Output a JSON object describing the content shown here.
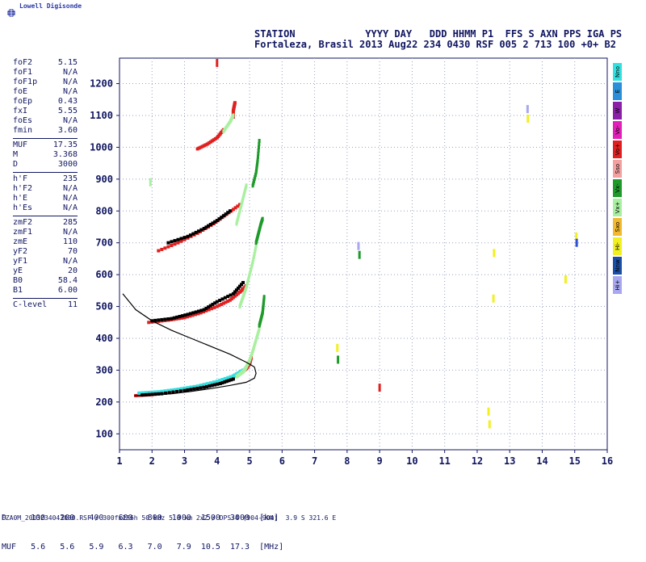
{
  "brand": {
    "name": "Lowell Digisonde"
  },
  "header": {
    "line1": "STATION            YYYY DAY   DDD HHMM P1  FFS S AXN PPS IGA PS",
    "line2": "Fortaleza, Brasil 2013 Aug22 234 0430 RSF 005 2 713 100 +0+ B2"
  },
  "params": [
    {
      "group": [
        {
          "label": "foF2",
          "value": "5.15"
        },
        {
          "label": "foF1",
          "value": "N/A"
        },
        {
          "label": "foF1p",
          "value": "N/A"
        },
        {
          "label": "foE",
          "value": "N/A"
        },
        {
          "label": "foEp",
          "value": "0.43"
        },
        {
          "label": "fxI",
          "value": "5.55"
        },
        {
          "label": "foEs",
          "value": "N/A"
        },
        {
          "label": "fmin",
          "value": "3.60"
        }
      ]
    },
    {
      "group": [
        {
          "label": "MUF",
          "value": "17.35"
        },
        {
          "label": "M",
          "value": "3.368"
        },
        {
          "label": "D",
          "value": "3000"
        }
      ]
    },
    {
      "group": [
        {
          "label": "h'F",
          "value": "235"
        },
        {
          "label": "h'F2",
          "value": "N/A"
        },
        {
          "label": "h'E",
          "value": "N/A"
        },
        {
          "label": "h'Es",
          "value": "N/A"
        }
      ]
    },
    {
      "group": [
        {
          "label": "zmF2",
          "value": "285"
        },
        {
          "label": "zmF1",
          "value": "N/A"
        },
        {
          "label": "zmE",
          "value": "110"
        },
        {
          "label": "yF2",
          "value": "70"
        },
        {
          "label": "yF1",
          "value": "N/A"
        },
        {
          "label": "yE",
          "value": "20"
        },
        {
          "label": "B0",
          "value": "58.4"
        },
        {
          "label": "B1",
          "value": "6.00"
        }
      ]
    },
    {
      "group": [
        {
          "label": "C-level",
          "value": "11"
        }
      ]
    }
  ],
  "legend": [
    {
      "label": "Nno",
      "color": "#33e0e0"
    },
    {
      "label": "E",
      "color": "#2a8fd8"
    },
    {
      "label": "W",
      "color": "#8a1fa8"
    },
    {
      "label": "Vo-",
      "color": "#e21fb8"
    },
    {
      "label": "Vo+",
      "color": "#e02020"
    },
    {
      "label": "Sso",
      "color": "#f2a0a0"
    },
    {
      "label": "Vx-",
      "color": "#1e9a2a"
    },
    {
      "label": "Vx+",
      "color": "#a8f0a0"
    },
    {
      "label": "Sxo",
      "color": "#f2b830"
    },
    {
      "label": "Hi-",
      "color": "#f2f020"
    },
    {
      "label": "Nnw",
      "color": "#1a4fa8"
    },
    {
      "label": "Hi+",
      "color": "#a8a8f0"
    }
  ],
  "footer": {
    "line1": "D     100   200   400   600   800  1000  1500  3000  [km]",
    "line2": "MUF   5.6   5.6   5.9   6.3   7.0   7.9  10.5  17.3  [MHz]",
    "line3": "FZA0M_2013234043000.RSF / 300fx256h 50 kHz 5.0 km 2x2 / DPS-4 (904-904)  3.9 S 321.6 E"
  },
  "chart_data": {
    "type": "scatter",
    "x_ticks": [
      "1",
      "2",
      "3",
      "4",
      "5",
      "6",
      "7",
      "8",
      "9",
      "10",
      "11",
      "12",
      "13",
      "14",
      "15",
      "16"
    ],
    "y_ticks": [
      "100",
      "200",
      "300",
      "400",
      "500",
      "600",
      "700",
      "800",
      "900",
      "1000",
      "1100",
      "1200"
    ],
    "xlim": [
      1,
      16
    ],
    "ylim": [
      50,
      1280
    ],
    "grid": true,
    "colors": {
      "o": "#e02020",
      "o2": "#8a1f3a",
      "x": "#1e9a2a",
      "xl": "#a8f0a0",
      "c": "#33e0e0",
      "b": "#2a4fd8",
      "k": "#000000",
      "y": "#f2f020",
      "p": "#a8a8f0"
    },
    "traces": [
      {
        "x": [
          1.5,
          2.0,
          2.5,
          3.0,
          3.5,
          4.0,
          4.4,
          4.7,
          4.9,
          5.0,
          5.05
        ],
        "y": [
          220,
          223,
          232,
          240,
          250,
          262,
          275,
          290,
          305,
          320,
          340
        ],
        "color": "o"
      },
      {
        "x": [
          1.6,
          2.2,
          2.8,
          3.4,
          4.0,
          4.5,
          4.8
        ],
        "y": [
          228,
          232,
          240,
          250,
          265,
          282,
          300
        ],
        "color": "c"
      },
      {
        "x": [
          1.7,
          2.3,
          3.0,
          3.6,
          4.1,
          4.5
        ],
        "y": [
          222,
          226,
          236,
          246,
          258,
          272
        ],
        "color": "k"
      },
      {
        "x": [
          1.9,
          2.5,
          3.0,
          3.5,
          4.0,
          4.4,
          4.7,
          4.9
        ],
        "y": [
          450,
          457,
          465,
          480,
          500,
          520,
          545,
          565
        ],
        "color": "o"
      },
      {
        "x": [
          2.0,
          2.6,
          3.1,
          3.6,
          4.0,
          4.5,
          4.8
        ],
        "y": [
          455,
          462,
          475,
          490,
          515,
          540,
          575
        ],
        "color": "k"
      },
      {
        "x": [
          2.2,
          2.8,
          3.4,
          3.9,
          4.3,
          4.7
        ],
        "y": [
          675,
          700,
          730,
          760,
          790,
          820
        ],
        "color": "o"
      },
      {
        "x": [
          2.5,
          3.1,
          3.6,
          4.0,
          4.4
        ],
        "y": [
          700,
          720,
          745,
          770,
          800
        ],
        "color": "k"
      },
      {
        "x": [
          3.4,
          3.7,
          4.0,
          4.2
        ],
        "y": [
          995,
          1010,
          1030,
          1055
        ],
        "color": "o"
      },
      {
        "x": [
          4.5,
          4.5,
          4.55
        ],
        "y": [
          1095,
          1115,
          1140
        ],
        "color": "o"
      }
    ],
    "x_traces": [
      {
        "x": [
          4.6,
          4.8,
          4.9,
          5.0,
          5.1,
          5.2,
          5.3
        ],
        "y": [
          280,
          295,
          310,
          330,
          360,
          395,
          430
        ],
        "color": "xl"
      },
      {
        "x": [
          5.3,
          5.35,
          5.4,
          5.42,
          5.45
        ],
        "y": [
          440,
          460,
          480,
          500,
          530
        ],
        "color": "x"
      },
      {
        "x": [
          4.7,
          4.8,
          4.9,
          5.0,
          5.1,
          5.2
        ],
        "y": [
          500,
          530,
          560,
          600,
          640,
          690
        ],
        "color": "xl"
      },
      {
        "x": [
          5.2,
          5.25,
          5.3,
          5.35,
          5.4
        ],
        "y": [
          700,
          720,
          740,
          760,
          775
        ],
        "color": "x"
      },
      {
        "x": [
          4.6,
          4.7,
          4.8,
          4.9
        ],
        "y": [
          760,
          800,
          840,
          880
        ],
        "color": "xl"
      },
      {
        "x": [
          5.1,
          5.2,
          5.25,
          5.3
        ],
        "y": [
          880,
          920,
          960,
          1020
        ],
        "color": "x"
      },
      {
        "x": [
          4.2,
          4.4,
          4.5
        ],
        "y": [
          1050,
          1080,
          1100
        ],
        "color": "xl"
      }
    ],
    "spots": [
      {
        "x": 7.7,
        "y": 370,
        "color": "y"
      },
      {
        "x": 7.72,
        "y": 333,
        "color": "x"
      },
      {
        "x": 9.0,
        "y": 245,
        "color": "o"
      },
      {
        "x": 8.35,
        "y": 690,
        "color": "p"
      },
      {
        "x": 8.38,
        "y": 662,
        "color": "x"
      },
      {
        "x": 12.35,
        "y": 170,
        "color": "y"
      },
      {
        "x": 12.38,
        "y": 130,
        "color": "y"
      },
      {
        "x": 12.5,
        "y": 525,
        "color": "y"
      },
      {
        "x": 12.52,
        "y": 668,
        "color": "y"
      },
      {
        "x": 13.55,
        "y": 1120,
        "color": "p"
      },
      {
        "x": 13.56,
        "y": 1090,
        "color": "y"
      },
      {
        "x": 14.72,
        "y": 585,
        "color": "y"
      },
      {
        "x": 15.05,
        "y": 720,
        "color": "y"
      },
      {
        "x": 15.06,
        "y": 700,
        "color": "b"
      },
      {
        "x": 1.95,
        "y": 890,
        "color": "xl"
      },
      {
        "x": 4.0,
        "y": 1265,
        "color": "o"
      }
    ],
    "profile": {
      "upper": {
        "x": [
          1.1,
          1.5,
          2.0,
          2.6,
          3.2,
          3.8,
          4.4,
          4.9,
          5.15
        ],
        "y": [
          540,
          490,
          455,
          425,
          400,
          375,
          350,
          325,
          310
        ]
      },
      "lower": {
        "x": [
          1.45,
          2.0,
          2.6,
          3.2,
          3.8,
          4.4,
          4.9,
          5.15,
          5.2,
          5.15
        ],
        "y": [
          220,
          222,
          226,
          233,
          242,
          252,
          262,
          275,
          290,
          310
        ]
      }
    }
  }
}
